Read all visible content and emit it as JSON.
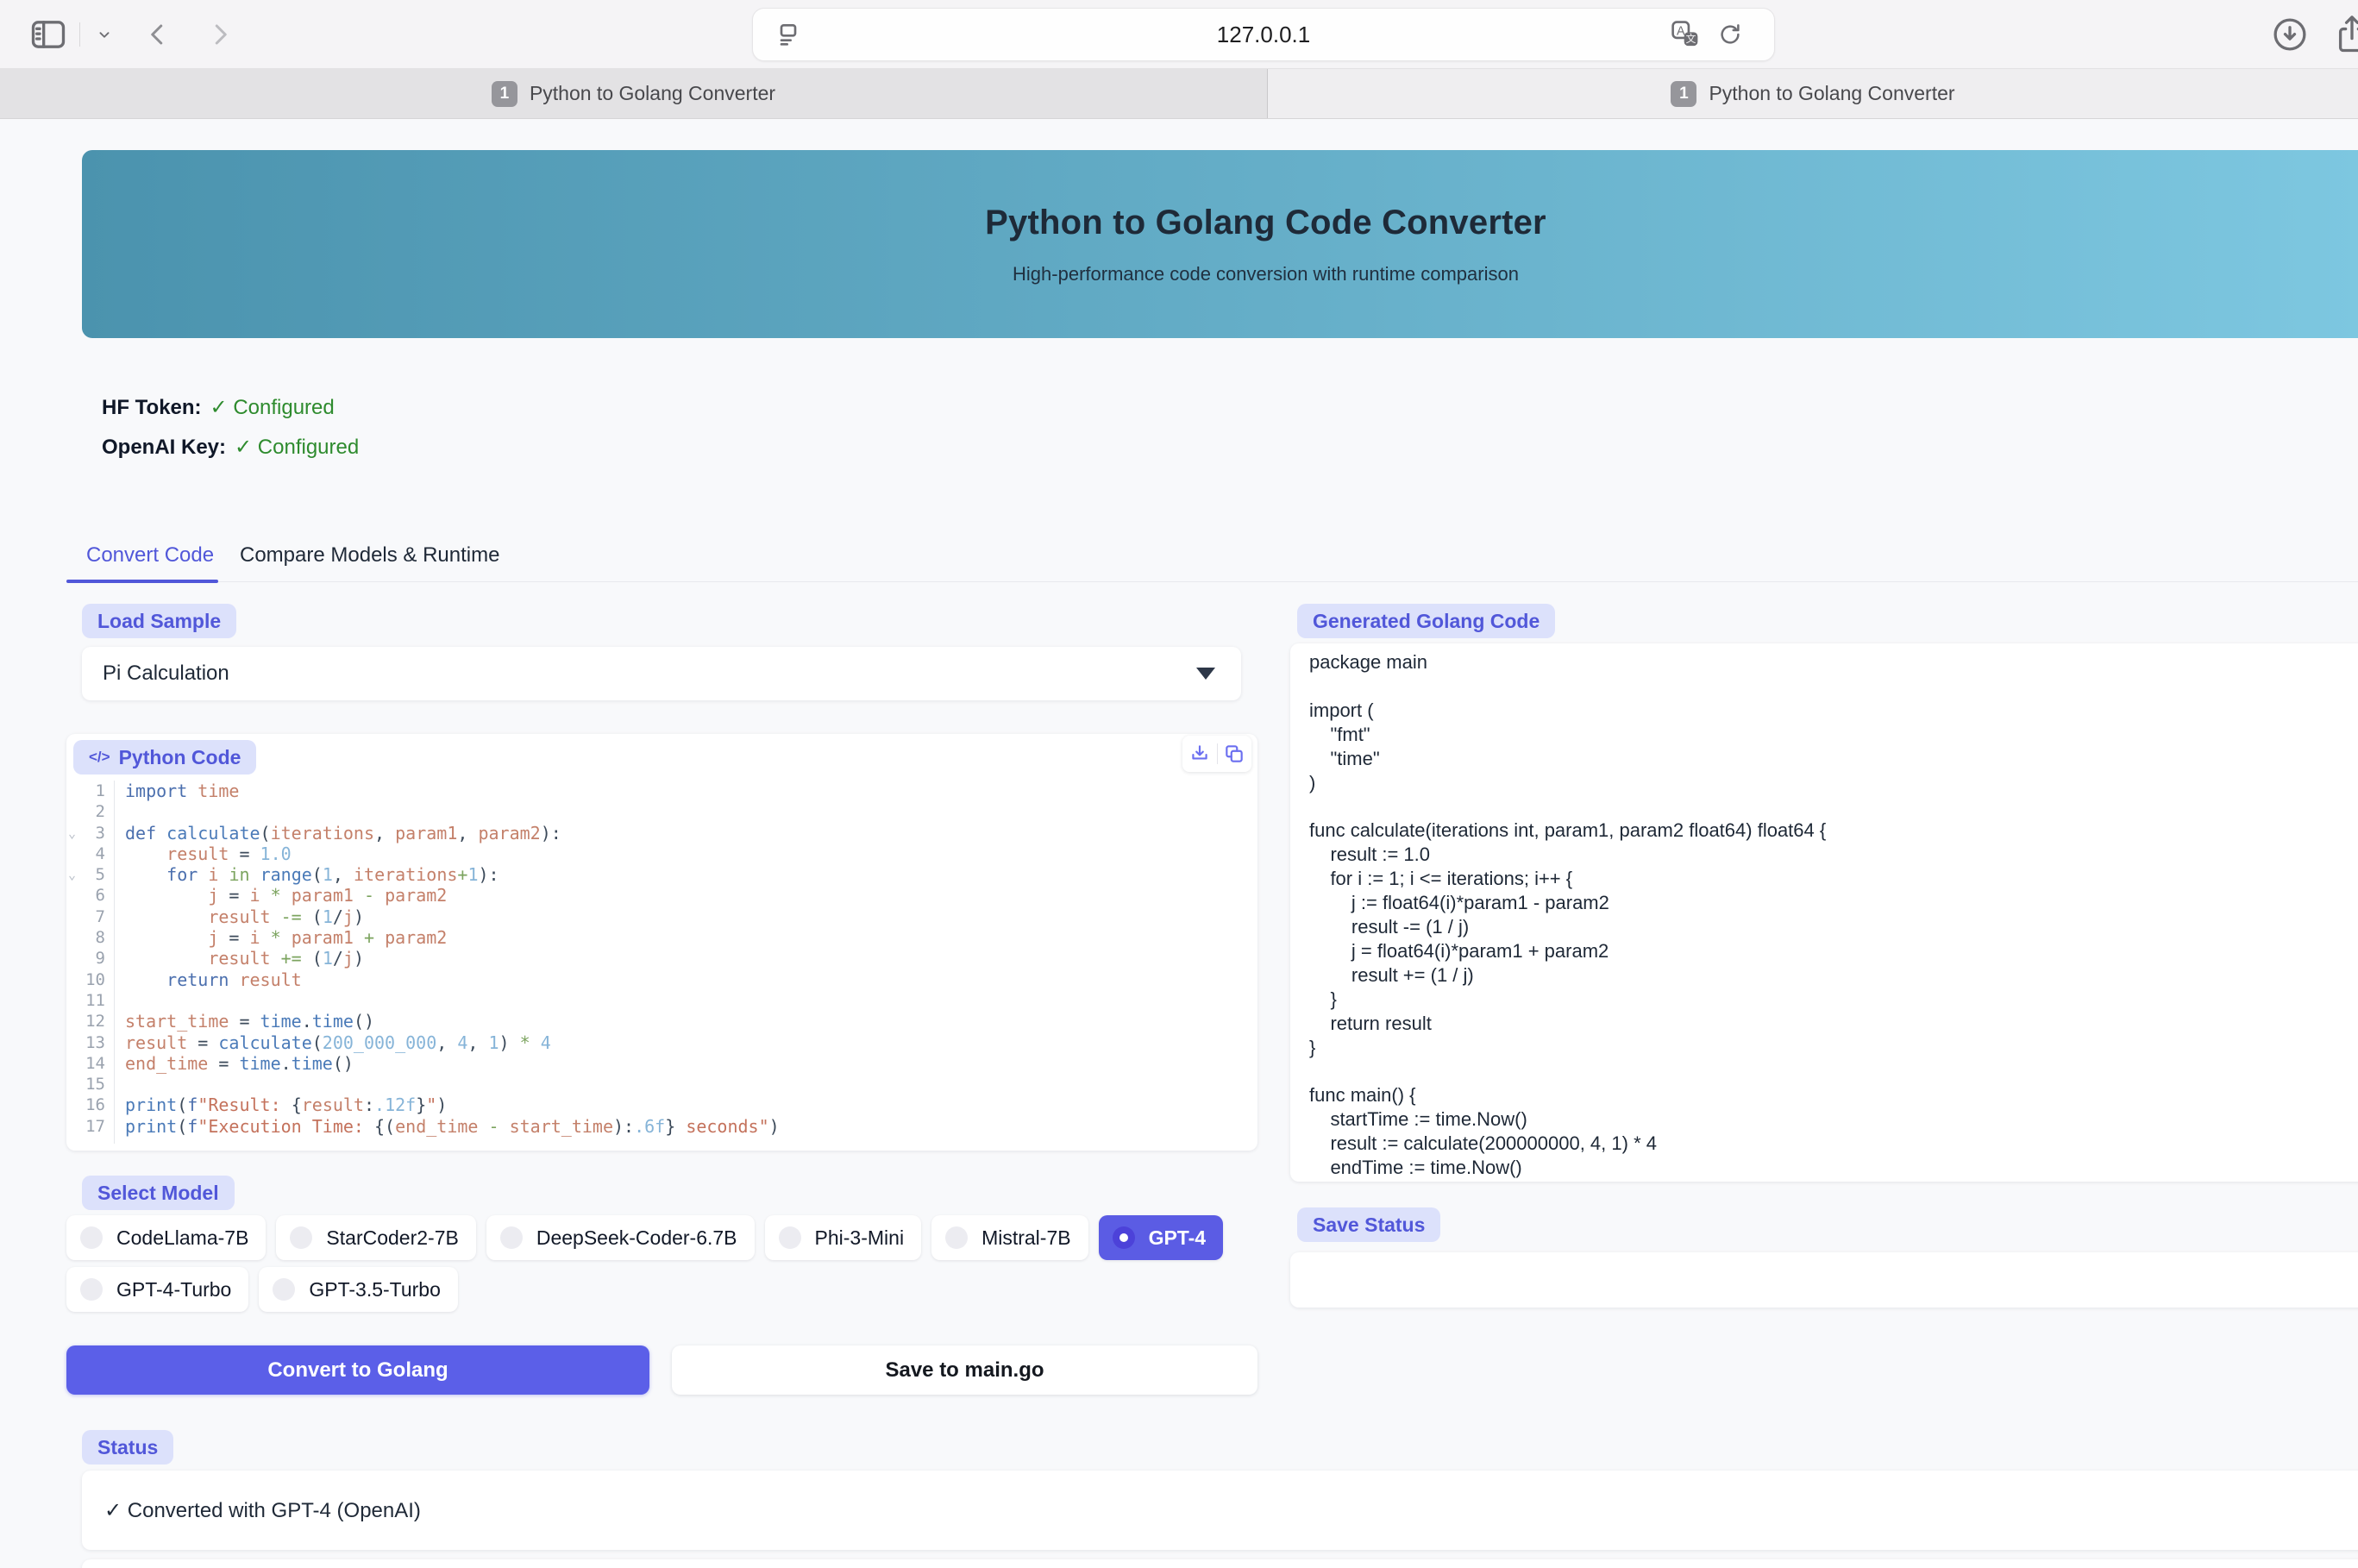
{
  "browser": {
    "url": "127.0.0.1",
    "tabs": [
      {
        "badge": "1",
        "title": "Python to Golang Converter",
        "active": false
      },
      {
        "badge": "1",
        "title": "Python to Golang Converter",
        "active": true
      }
    ]
  },
  "header": {
    "title": "Python to Golang Code Converter",
    "subtitle": "High-performance code conversion with runtime comparison"
  },
  "config": {
    "hf_label": "HF Token:",
    "hf_value": "✓ Configured",
    "openai_label": "OpenAI Key:",
    "openai_value": "✓ Configured"
  },
  "nav_tabs": {
    "convert": "Convert Code",
    "compare": "Compare Models & Runtime"
  },
  "load_sample": {
    "label": "Load Sample",
    "selected": "Pi Calculation"
  },
  "python_editor": {
    "label": "Python Code",
    "icon": "</>",
    "lines": [
      {
        "n": "1",
        "fold": false,
        "t": [
          [
            "k",
            "import"
          ],
          [
            "pl",
            " "
          ],
          [
            "id",
            "time"
          ]
        ]
      },
      {
        "n": "2",
        "fold": false,
        "t": []
      },
      {
        "n": "3",
        "fold": true,
        "t": [
          [
            "k",
            "def"
          ],
          [
            "pl",
            " "
          ],
          [
            "fn",
            "calculate"
          ],
          [
            "pl",
            "("
          ],
          [
            "id",
            "iterations"
          ],
          [
            "pl",
            ", "
          ],
          [
            "id",
            "param1"
          ],
          [
            "pl",
            ", "
          ],
          [
            "id",
            "param2"
          ],
          [
            "pl",
            "):"
          ]
        ]
      },
      {
        "n": "4",
        "fold": false,
        "t": [
          [
            "pl",
            "    "
          ],
          [
            "id",
            "result"
          ],
          [
            "pl",
            " = "
          ],
          [
            "nu",
            "1.0"
          ]
        ]
      },
      {
        "n": "5",
        "fold": true,
        "t": [
          [
            "pl",
            "    "
          ],
          [
            "k",
            "for"
          ],
          [
            "pl",
            " "
          ],
          [
            "id",
            "i"
          ],
          [
            "pl",
            " "
          ],
          [
            "op",
            "in"
          ],
          [
            "pl",
            " "
          ],
          [
            "fn",
            "range"
          ],
          [
            "pl",
            "("
          ],
          [
            "nu",
            "1"
          ],
          [
            "pl",
            ", "
          ],
          [
            "id",
            "iterations"
          ],
          [
            "op",
            "+"
          ],
          [
            "nu",
            "1"
          ],
          [
            "pl",
            "):"
          ]
        ]
      },
      {
        "n": "6",
        "fold": false,
        "t": [
          [
            "pl",
            "        "
          ],
          [
            "id",
            "j"
          ],
          [
            "pl",
            " = "
          ],
          [
            "id",
            "i"
          ],
          [
            "pl",
            " "
          ],
          [
            "op",
            "*"
          ],
          [
            "pl",
            " "
          ],
          [
            "id",
            "param1"
          ],
          [
            "pl",
            " "
          ],
          [
            "op",
            "-"
          ],
          [
            "pl",
            " "
          ],
          [
            "id",
            "param2"
          ]
        ]
      },
      {
        "n": "7",
        "fold": false,
        "t": [
          [
            "pl",
            "        "
          ],
          [
            "id",
            "result"
          ],
          [
            "pl",
            " "
          ],
          [
            "op",
            "-="
          ],
          [
            "pl",
            " ("
          ],
          [
            "nu",
            "1"
          ],
          [
            "pl",
            "/"
          ],
          [
            "id",
            "j"
          ],
          [
            "pl",
            ")"
          ]
        ]
      },
      {
        "n": "8",
        "fold": false,
        "t": [
          [
            "pl",
            "        "
          ],
          [
            "id",
            "j"
          ],
          [
            "pl",
            " = "
          ],
          [
            "id",
            "i"
          ],
          [
            "pl",
            " "
          ],
          [
            "op",
            "*"
          ],
          [
            "pl",
            " "
          ],
          [
            "id",
            "param1"
          ],
          [
            "pl",
            " "
          ],
          [
            "op",
            "+"
          ],
          [
            "pl",
            " "
          ],
          [
            "id",
            "param2"
          ]
        ]
      },
      {
        "n": "9",
        "fold": false,
        "t": [
          [
            "pl",
            "        "
          ],
          [
            "id",
            "result"
          ],
          [
            "pl",
            " "
          ],
          [
            "op",
            "+="
          ],
          [
            "pl",
            " ("
          ],
          [
            "nu",
            "1"
          ],
          [
            "pl",
            "/"
          ],
          [
            "id",
            "j"
          ],
          [
            "pl",
            ")"
          ]
        ]
      },
      {
        "n": "10",
        "fold": false,
        "t": [
          [
            "pl",
            "    "
          ],
          [
            "k",
            "return"
          ],
          [
            "pl",
            " "
          ],
          [
            "id",
            "result"
          ]
        ]
      },
      {
        "n": "11",
        "fold": false,
        "t": []
      },
      {
        "n": "12",
        "fold": false,
        "t": [
          [
            "id",
            "start_time"
          ],
          [
            "pl",
            " = "
          ],
          [
            "fn",
            "time"
          ],
          [
            "pl",
            "."
          ],
          [
            "fn",
            "time"
          ],
          [
            "pl",
            "()"
          ]
        ]
      },
      {
        "n": "13",
        "fold": false,
        "t": [
          [
            "id",
            "result"
          ],
          [
            "pl",
            " = "
          ],
          [
            "fn",
            "calculate"
          ],
          [
            "pl",
            "("
          ],
          [
            "nu",
            "200_000_000"
          ],
          [
            "pl",
            ", "
          ],
          [
            "nu",
            "4"
          ],
          [
            "pl",
            ", "
          ],
          [
            "nu",
            "1"
          ],
          [
            "pl",
            ") "
          ],
          [
            "op",
            "*"
          ],
          [
            "pl",
            " "
          ],
          [
            "nu",
            "4"
          ]
        ]
      },
      {
        "n": "14",
        "fold": false,
        "t": [
          [
            "id",
            "end_time"
          ],
          [
            "pl",
            " = "
          ],
          [
            "fn",
            "time"
          ],
          [
            "pl",
            "."
          ],
          [
            "fn",
            "time"
          ],
          [
            "pl",
            "()"
          ]
        ]
      },
      {
        "n": "15",
        "fold": false,
        "t": []
      },
      {
        "n": "16",
        "fold": false,
        "t": [
          [
            "fn",
            "print"
          ],
          [
            "pl",
            "("
          ],
          [
            "k",
            "f"
          ],
          [
            "st",
            "\"Result: "
          ],
          [
            "pl",
            "{"
          ],
          [
            "id",
            "result"
          ],
          [
            "pl",
            ":"
          ],
          [
            "fs",
            ".12f"
          ],
          [
            "pl",
            "}"
          ],
          [
            "st",
            "\""
          ],
          [
            "pl",
            ")"
          ]
        ]
      },
      {
        "n": "17",
        "fold": false,
        "t": [
          [
            "fn",
            "print"
          ],
          [
            "pl",
            "("
          ],
          [
            "k",
            "f"
          ],
          [
            "st",
            "\"Execution Time: "
          ],
          [
            "pl",
            "{("
          ],
          [
            "id",
            "end_time"
          ],
          [
            "pl",
            " "
          ],
          [
            "op",
            "-"
          ],
          [
            "pl",
            " "
          ],
          [
            "id",
            "start_time"
          ],
          [
            "pl",
            "):"
          ],
          [
            "fs",
            ".6f"
          ],
          [
            "pl",
            "} "
          ],
          [
            "st",
            "seconds\""
          ],
          [
            "pl",
            ")"
          ]
        ]
      }
    ]
  },
  "golang_output": {
    "label": "Generated Golang Code",
    "code": "package main\n\nimport (\n    \"fmt\"\n    \"time\"\n)\n\nfunc calculate(iterations int, param1, param2 float64) float64 {\n    result := 1.0\n    for i := 1; i <= iterations; i++ {\n        j := float64(i)*param1 - param2\n        result -= (1 / j)\n        j = float64(i)*param1 + param2\n        result += (1 / j)\n    }\n    return result\n}\n\nfunc main() {\n    startTime := time.Now()\n    result := calculate(200000000, 4, 1) * 4\n    endTime := time.Now()"
  },
  "select_model": {
    "label": "Select Model",
    "options": [
      "CodeLlama-7B",
      "StarCoder2-7B",
      "DeepSeek-Coder-6.7B",
      "Phi-3-Mini",
      "Mistral-7B",
      "GPT-4",
      "GPT-4-Turbo",
      "GPT-3.5-Turbo"
    ],
    "selected": "GPT-4"
  },
  "actions": {
    "convert": "Convert to Golang",
    "save": "Save to main.go"
  },
  "status": {
    "label": "Status",
    "message": "✓ Converted with GPT-4 (OpenAI)"
  },
  "save_status": {
    "label": "Save Status"
  },
  "colors": {
    "accent": "#5b5fe8",
    "pill_bg": "#dce1fb",
    "pill_text": "#5157d9",
    "banner_from": "#4b93ae",
    "banner_to": "#7fc9e2",
    "success": "#2e8b2e"
  }
}
